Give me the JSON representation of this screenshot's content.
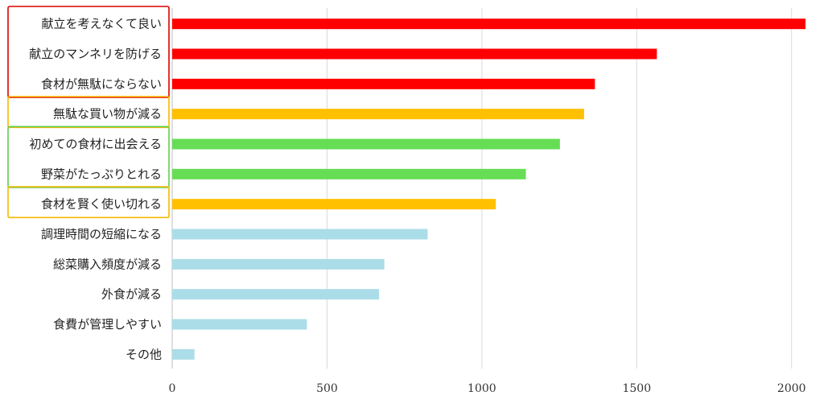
{
  "chart_data": {
    "type": "bar",
    "orientation": "horizontal",
    "categories": [
      "献立を考えなくて良い",
      "献立のマンネリを防げる",
      "食材が無駄にならない",
      "無駄な買い物が減る",
      "初めての食材に出会える",
      "野菜がたっぷりとれる",
      "食材を賢く使い切れる",
      "調理時間の短縮になる",
      "総菜購入頻度が減る",
      "外食が減る",
      "食費が管理しやすい",
      "その他"
    ],
    "values": [
      2045,
      1565,
      1365,
      1330,
      1252,
      1142,
      1045,
      825,
      685,
      668,
      435,
      72
    ],
    "bar_colors": [
      "#ff0000",
      "#ff0000",
      "#ff0000",
      "#ffc000",
      "#66dd55",
      "#66dd55",
      "#ffc000",
      "#abdde8",
      "#abdde8",
      "#abdde8",
      "#abdde8",
      "#abdde8"
    ],
    "xlim": [
      0,
      2050
    ],
    "xticks": [
      0,
      500,
      1000,
      1500,
      2000
    ],
    "grid": "vertical",
    "title": "",
    "xlabel": "",
    "ylabel": "",
    "groups": [
      {
        "color": "#dd0000",
        "from": 0,
        "to": 2
      },
      {
        "color": "#f5b800",
        "from": 3,
        "to": 3
      },
      {
        "color": "#66cc55",
        "from": 4,
        "to": 5
      },
      {
        "color": "#f5b800",
        "from": 6,
        "to": 6
      }
    ]
  }
}
